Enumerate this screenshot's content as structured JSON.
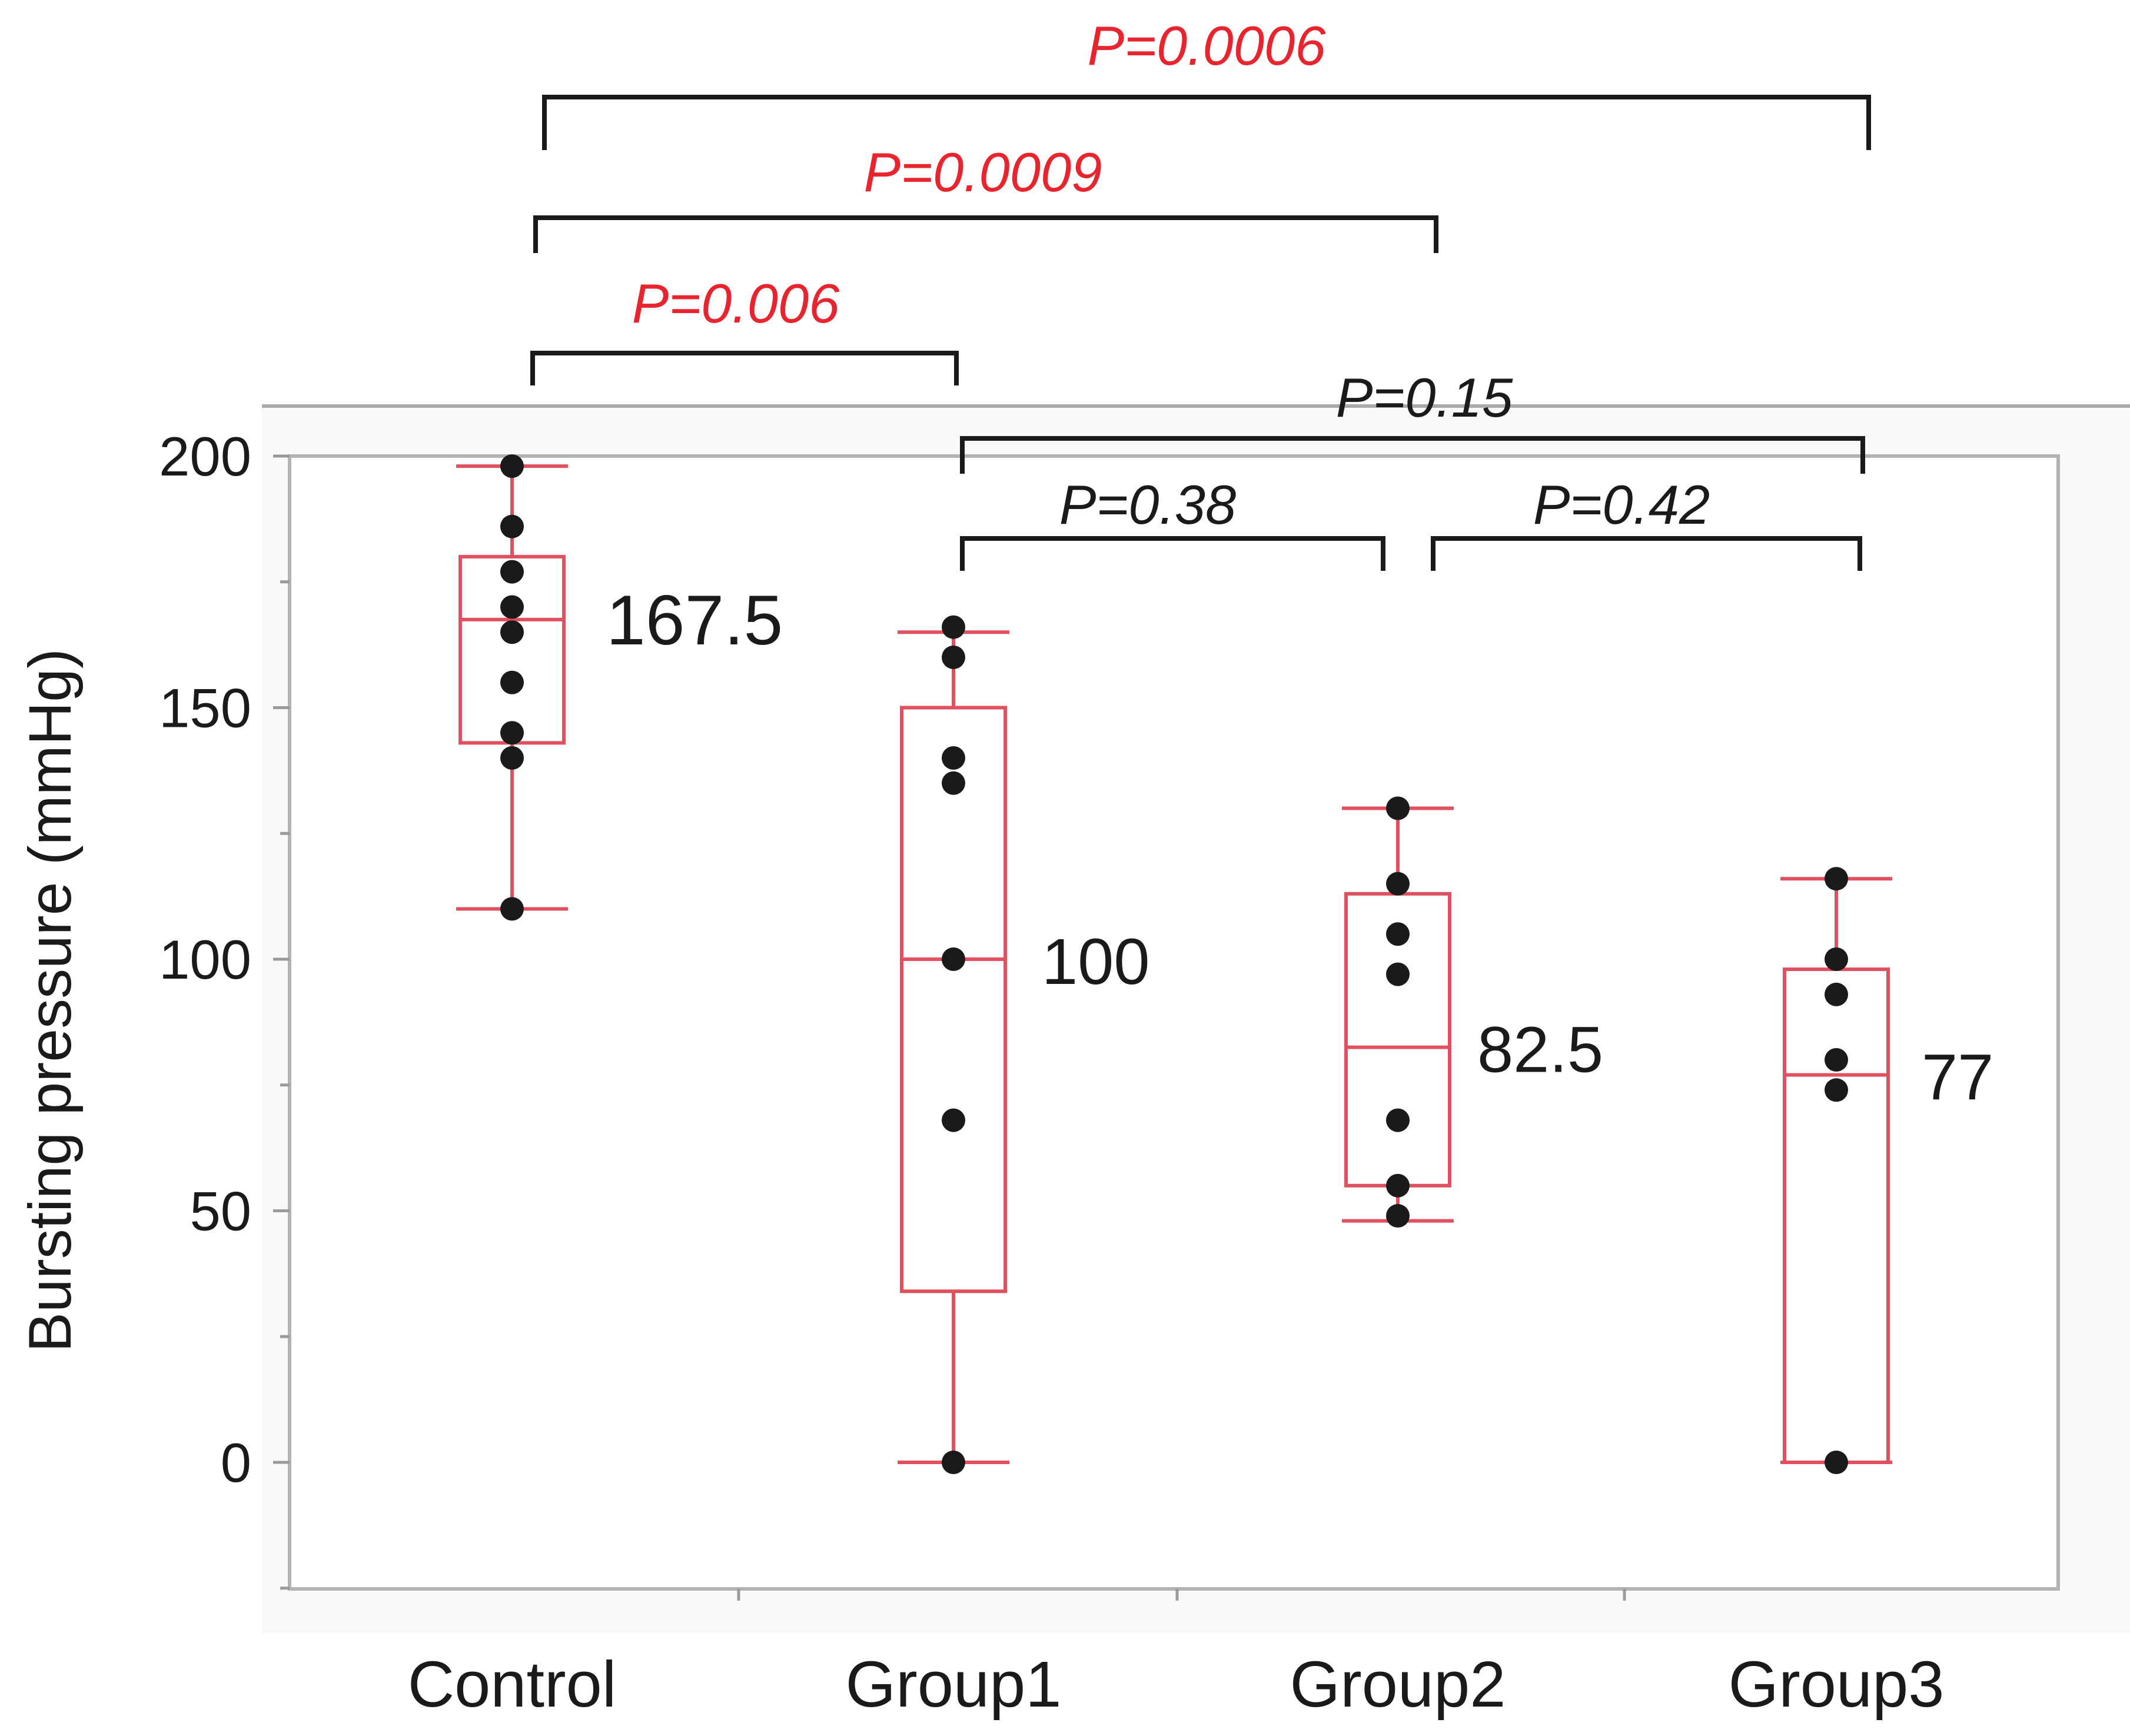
{
  "chart_data": {
    "type": "box",
    "title": "",
    "xlabel": "",
    "ylabel": "Bursting pressure  (mmHg)",
    "ylim": [
      -25,
      200
    ],
    "yticks": [
      0,
      50,
      100,
      150,
      200
    ],
    "grid": false,
    "categories": [
      "Control",
      "Group1",
      "Group2",
      "Group3"
    ],
    "box_color": "#e0505e",
    "point_color": "#1a1a1a",
    "groups": [
      {
        "name": "Control",
        "min": 110,
        "q1": 143,
        "median": 167.5,
        "q3": 180,
        "max": 198,
        "median_label": "167.5",
        "points": [
          198,
          186,
          177,
          170,
          165,
          155,
          145,
          140,
          110
        ]
      },
      {
        "name": "Group1",
        "min": 0,
        "q1": 34,
        "median": 100,
        "q3": 150,
        "max": 165,
        "median_label": "100",
        "points": [
          166,
          160,
          140,
          135,
          100,
          68,
          0
        ]
      },
      {
        "name": "Group2",
        "min": 48,
        "q1": 55,
        "median": 82.5,
        "q3": 113,
        "max": 130,
        "median_label": "82.5",
        "points": [
          130,
          115,
          105,
          97,
          68,
          55,
          49
        ]
      },
      {
        "name": "Group3",
        "min": 0,
        "q1": 0,
        "median": 77,
        "q3": 98,
        "max": 116,
        "median_label": "77",
        "points": [
          116,
          100,
          93,
          80,
          74,
          0
        ]
      }
    ],
    "comparisons": [
      {
        "from": 0,
        "to": 3,
        "label": "P=0.0006",
        "color": "#e8242e",
        "significant": true
      },
      {
        "from": 0,
        "to": 2,
        "label": "P=0.0009",
        "color": "#e8242e",
        "significant": true
      },
      {
        "from": 0,
        "to": 1,
        "label": "P=0.006",
        "color": "#e8242e",
        "significant": true
      },
      {
        "from": 1,
        "to": 3,
        "label": "P=0.15",
        "color": "#1a1a1a",
        "significant": false
      },
      {
        "from": 1,
        "to": 2,
        "label": "P=0.38",
        "color": "#1a1a1a",
        "significant": false
      },
      {
        "from": 2,
        "to": 3,
        "label": "P=0.42",
        "color": "#1a1a1a",
        "significant": false
      }
    ]
  }
}
